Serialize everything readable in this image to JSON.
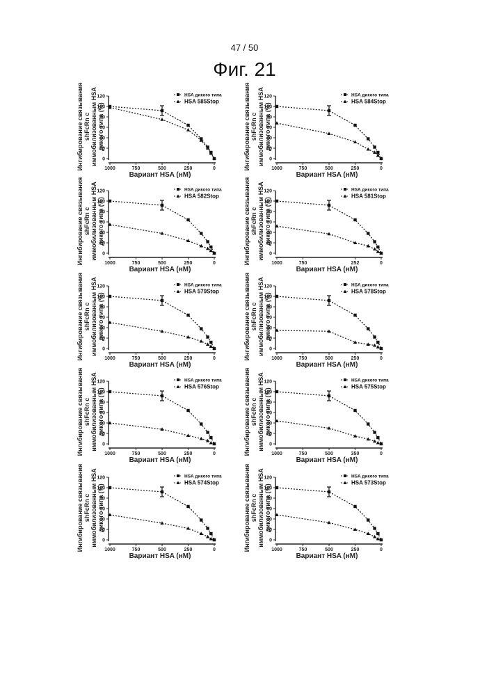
{
  "page_number": "47 / 50",
  "figure_title": "Фиг. 21",
  "shared": {
    "ylabel": "Ингибирование связывания shFcRn с иммобилизованным HSA дикого типа (%)",
    "xlabel": "Вариант HSA (нМ)",
    "wild_type_label": "HSA дикого типа",
    "yticks": [
      0,
      20,
      40,
      60,
      80,
      100,
      120
    ],
    "xticks": [
      1000,
      750,
      500,
      250,
      0
    ],
    "xtick_labels": [
      "1000",
      "750",
      "500",
      "250",
      "0"
    ]
  },
  "chart_data": [
    {
      "type": "line",
      "ylim": [
        0,
        120
      ],
      "xlim": [
        1000,
        0
      ],
      "x": [
        1000,
        500,
        250,
        125,
        62.5,
        31.25,
        0
      ],
      "series": [
        {
          "name": "HSA дикого типа",
          "marker": "square",
          "values": [
            100,
            92,
            64,
            38,
            22,
            12,
            0
          ]
        },
        {
          "name": "HSA 585Stop",
          "marker": "triangle",
          "values": [
            98,
            75,
            55,
            35,
            20,
            10,
            0
          ]
        }
      ],
      "xtick_labels": [
        "1000",
        "750",
        "500",
        "250",
        "0"
      ]
    },
    {
      "type": "line",
      "ylim": [
        0,
        120
      ],
      "xlim": [
        1000,
        0
      ],
      "x": [
        1000,
        500,
        250,
        125,
        62.5,
        31.25,
        0
      ],
      "series": [
        {
          "name": "HSA дикого типа",
          "marker": "square",
          "values": [
            100,
            92,
            64,
            38,
            22,
            12,
            0
          ]
        },
        {
          "name": "HSA 584Stop",
          "marker": "triangle",
          "values": [
            68,
            48,
            32,
            18,
            12,
            6,
            0
          ]
        }
      ],
      "xtick_labels": [
        "1000",
        "750",
        "500",
        "250",
        "0"
      ]
    },
    {
      "type": "line",
      "ylim": [
        0,
        120
      ],
      "xlim": [
        1000,
        0
      ],
      "x": [
        1000,
        500,
        250,
        125,
        62.5,
        31.25,
        0
      ],
      "series": [
        {
          "name": "HSA дикого типа",
          "marker": "square",
          "values": [
            100,
            92,
            64,
            38,
            22,
            12,
            0
          ]
        },
        {
          "name": "HSA 582Stop",
          "marker": "triangle",
          "values": [
            55,
            38,
            24,
            14,
            9,
            5,
            0
          ]
        }
      ],
      "xtick_labels": [
        "1000",
        "750",
        "500",
        "250",
        "0"
      ]
    },
    {
      "type": "line",
      "ylim": [
        0,
        120
      ],
      "xlim": [
        1000,
        0
      ],
      "x": [
        1000,
        500,
        250,
        125,
        62.5,
        31.25,
        0
      ],
      "series": [
        {
          "name": "HSA дикого типа",
          "marker": "square",
          "values": [
            100,
            92,
            64,
            38,
            22,
            12,
            0
          ]
        },
        {
          "name": "HSA 581Stop",
          "marker": "triangle",
          "values": [
            52,
            37,
            20,
            14,
            8,
            3,
            0
          ]
        }
      ],
      "xtick_labels": [
        "1000",
        "750",
        "252",
        "0"
      ]
    },
    {
      "type": "line",
      "ylim": [
        0,
        120
      ],
      "xlim": [
        1000,
        0
      ],
      "x": [
        1000,
        500,
        250,
        125,
        62.5,
        31.25,
        0
      ],
      "series": [
        {
          "name": "HSA дикого типа",
          "marker": "square",
          "values": [
            100,
            92,
            64,
            38,
            22,
            12,
            0
          ]
        },
        {
          "name": "HSA 579Stop",
          "marker": "triangle",
          "values": [
            50,
            33,
            22,
            14,
            8,
            4,
            0
          ]
        }
      ],
      "xtick_labels": [
        "1000",
        "750",
        "500",
        "250",
        "0"
      ]
    },
    {
      "type": "line",
      "ylim": [
        0,
        120
      ],
      "xlim": [
        1000,
        0
      ],
      "x": [
        1000,
        500,
        250,
        125,
        62.5,
        31.25,
        0
      ],
      "series": [
        {
          "name": "HSA дикого типа",
          "marker": "square",
          "values": [
            100,
            92,
            64,
            38,
            22,
            12,
            0
          ]
        },
        {
          "name": "HSA 578Stop",
          "marker": "triangle",
          "values": [
            35,
            33,
            12,
            8,
            6,
            3,
            0
          ]
        }
      ],
      "xtick_labels": [
        "1000",
        "750",
        "500",
        "250",
        "0"
      ]
    },
    {
      "type": "line",
      "ylim": [
        0,
        120
      ],
      "xlim": [
        1000,
        0
      ],
      "x": [
        1000,
        500,
        250,
        125,
        62.5,
        31.25,
        0
      ],
      "series": [
        {
          "name": "HSA дикого типа",
          "marker": "square",
          "values": [
            100,
            92,
            64,
            38,
            22,
            12,
            0
          ]
        },
        {
          "name": "HSA 576Stop",
          "marker": "triangle",
          "values": [
            40,
            28,
            16,
            10,
            6,
            2,
            0
          ]
        }
      ],
      "xtick_labels": [
        "1000",
        "750",
        "500",
        "250",
        "0"
      ]
    },
    {
      "type": "line",
      "ylim": [
        0,
        120
      ],
      "xlim": [
        1000,
        0
      ],
      "x": [
        1000,
        500,
        250,
        125,
        62.5,
        31.25,
        0
      ],
      "series": [
        {
          "name": "HSA дикого типа",
          "marker": "square",
          "values": [
            100,
            92,
            64,
            38,
            22,
            12,
            0
          ]
        },
        {
          "name": "HSA 575Stop",
          "marker": "triangle",
          "values": [
            44,
            30,
            15,
            9,
            5,
            2,
            0
          ]
        }
      ],
      "xtick_labels": [
        "1000",
        "750",
        "500",
        "350",
        "0"
      ]
    },
    {
      "type": "line",
      "ylim": [
        0,
        120
      ],
      "xlim": [
        1000,
        0
      ],
      "x": [
        1000,
        500,
        250,
        125,
        62.5,
        31.25,
        0
      ],
      "series": [
        {
          "name": "HSA дикого типа",
          "marker": "square",
          "values": [
            100,
            92,
            64,
            38,
            22,
            12,
            0
          ]
        },
        {
          "name": "HSA 574Stop",
          "marker": "triangle",
          "values": [
            48,
            32,
            22,
            12,
            6,
            2,
            0
          ]
        }
      ],
      "xtick_labels": [
        "1000",
        "750",
        "500",
        "250",
        "0"
      ]
    },
    {
      "type": "line",
      "ylim": [
        0,
        120
      ],
      "xlim": [
        1000,
        0
      ],
      "x": [
        1000,
        500,
        250,
        125,
        62.5,
        31.25,
        0
      ],
      "series": [
        {
          "name": "HSA дикого типа",
          "marker": "square",
          "values": [
            100,
            92,
            64,
            38,
            22,
            12,
            0
          ]
        },
        {
          "name": "HSA 573Stop",
          "marker": "triangle",
          "values": [
            48,
            33,
            20,
            12,
            6,
            2,
            0
          ]
        }
      ],
      "xtick_labels": [
        "1000",
        "750",
        "500",
        "250",
        "0"
      ]
    }
  ]
}
